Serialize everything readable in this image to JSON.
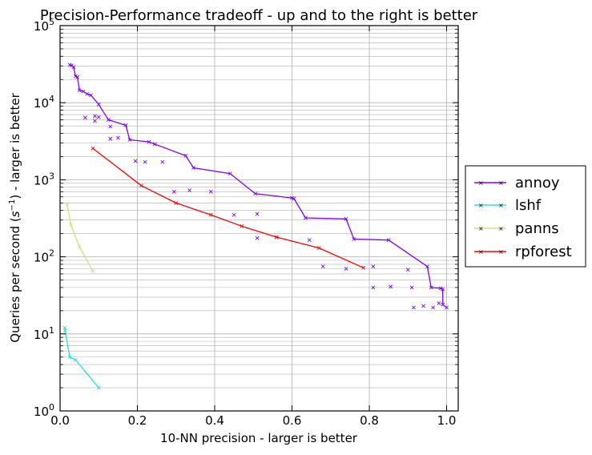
{
  "chart_data": {
    "type": "line",
    "title": "Precision-Performance tradeoff - up and to the right is better",
    "xlabel": "10-NN precision - larger is better",
    "ylabel": "Queries per second ($s^{-1}$) - larger is better",
    "ylabel_parts": {
      "before": "Queries per second (",
      "math_base": "s",
      "math_exp": "−1",
      "after": ") - larger is better"
    },
    "xlim": [
      0.0,
      1.03
    ],
    "ylim": [
      1,
      100000
    ],
    "yscale": "log",
    "grid": true,
    "legend_position": "right-outside",
    "x_ticks": [
      {
        "value": 0.0,
        "label": "0.0"
      },
      {
        "value": 0.2,
        "label": "0.2"
      },
      {
        "value": 0.4,
        "label": "0.4"
      },
      {
        "value": 0.6,
        "label": "0.6"
      },
      {
        "value": 0.8,
        "label": "0.8"
      },
      {
        "value": 1.0,
        "label": "1.0"
      }
    ],
    "y_ticks": [
      {
        "value": 1,
        "base": "10",
        "exp": "0"
      },
      {
        "value": 10,
        "base": "10",
        "exp": "1"
      },
      {
        "value": 100,
        "base": "10",
        "exp": "2"
      },
      {
        "value": 1000,
        "base": "10",
        "exp": "3"
      },
      {
        "value": 10000,
        "base": "10",
        "exp": "4"
      },
      {
        "value": 100000,
        "base": "10",
        "exp": "5"
      }
    ],
    "series": [
      {
        "name": "annoy",
        "color": "#8000ff",
        "line": [
          [
            0.025,
            31000
          ],
          [
            0.03,
            30500
          ],
          [
            0.035,
            29000
          ],
          [
            0.04,
            22000
          ],
          [
            0.045,
            21500
          ],
          [
            0.05,
            14500
          ],
          [
            0.06,
            14000
          ],
          [
            0.07,
            13000
          ],
          [
            0.08,
            12500
          ],
          [
            0.1,
            9500
          ],
          [
            0.125,
            6000
          ],
          [
            0.17,
            5100
          ],
          [
            0.18,
            3300
          ],
          [
            0.23,
            3100
          ],
          [
            0.245,
            2900
          ],
          [
            0.325,
            2050
          ],
          [
            0.345,
            1430
          ],
          [
            0.44,
            1200
          ],
          [
            0.505,
            660
          ],
          [
            0.6,
            580
          ],
          [
            0.605,
            570
          ],
          [
            0.635,
            320
          ],
          [
            0.74,
            310
          ],
          [
            0.76,
            170
          ],
          [
            0.85,
            165
          ],
          [
            0.95,
            75
          ],
          [
            0.96,
            40
          ],
          [
            0.985,
            39
          ],
          [
            0.99,
            38
          ],
          [
            0.99,
            24
          ],
          [
            1.0,
            22
          ]
        ],
        "points": [
          [
            0.065,
            6400
          ],
          [
            0.09,
            6700
          ],
          [
            0.1,
            6500
          ],
          [
            0.09,
            5800
          ],
          [
            0.13,
            4900
          ],
          [
            0.13,
            3400
          ],
          [
            0.15,
            3500
          ],
          [
            0.195,
            1750
          ],
          [
            0.22,
            1700
          ],
          [
            0.265,
            1700
          ],
          [
            0.295,
            700
          ],
          [
            0.335,
            730
          ],
          [
            0.39,
            700
          ],
          [
            0.45,
            350
          ],
          [
            0.51,
            360
          ],
          [
            0.51,
            175
          ],
          [
            0.56,
            180
          ],
          [
            0.645,
            165
          ],
          [
            0.68,
            75
          ],
          [
            0.74,
            70
          ],
          [
            0.81,
            75
          ],
          [
            0.81,
            40
          ],
          [
            0.855,
            41
          ],
          [
            0.9,
            68
          ],
          [
            0.91,
            40
          ],
          [
            0.915,
            22
          ],
          [
            0.94,
            23
          ],
          [
            0.965,
            22
          ],
          [
            0.98,
            25
          ]
        ]
      },
      {
        "name": "lshf",
        "color": "#2adddd",
        "line": [
          [
            0.012,
            12
          ],
          [
            0.013,
            11
          ],
          [
            0.025,
            5
          ],
          [
            0.04,
            4.6
          ],
          [
            0.1,
            2
          ]
        ],
        "points": []
      },
      {
        "name": "panns",
        "color": "#d4dd80",
        "line": [
          [
            0.018,
            490
          ],
          [
            0.028,
            260
          ],
          [
            0.05,
            135
          ],
          [
            0.085,
            65
          ]
        ],
        "points": []
      },
      {
        "name": "rpforest",
        "color": "#ff0000",
        "line": [
          [
            0.085,
            2550
          ],
          [
            0.21,
            840
          ],
          [
            0.3,
            500
          ],
          [
            0.39,
            350
          ],
          [
            0.47,
            250
          ],
          [
            0.56,
            180
          ],
          [
            0.67,
            130
          ],
          [
            0.785,
            72
          ]
        ],
        "points": []
      }
    ]
  }
}
